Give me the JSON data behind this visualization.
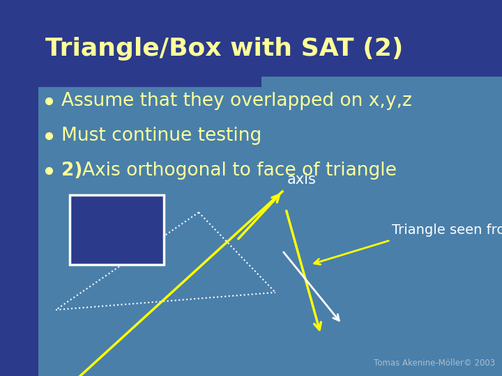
{
  "title": "Triangle/Box with SAT (2)",
  "title_color": "#FFFF99",
  "title_fontsize": 26,
  "bg_color_main": "#4a7faa",
  "bg_color_sidebar": "#2b3a8a",
  "bg_color_title": "#2b3a8a",
  "text_color": "#FFFF99",
  "text_fontsize": 19,
  "bullet_texts": [
    [
      "",
      "Assume that they overlapped on x,y,z"
    ],
    [
      "",
      "Must continue testing"
    ],
    [
      "2) ",
      "Axis orthogonal to face of triangle"
    ]
  ],
  "box_color": "#2b3a8a",
  "box_edge": "#ffffff",
  "axis_label": "axis",
  "triangle_label": "Triangle seen from side",
  "label_color": "#ffffff",
  "footer": "Tomas Akenine-Möller© 2003",
  "footer_color": "#aabfcf",
  "yellow": "#ffff00",
  "white": "#ffffff"
}
